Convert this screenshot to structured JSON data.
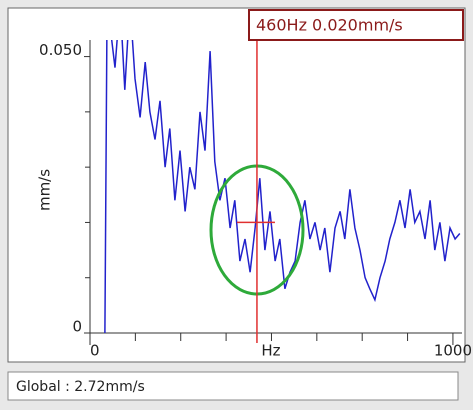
{
  "chart_data": {
    "type": "line",
    "xlabel": "Hz",
    "ylabel": "mm/s",
    "xlim": [
      0,
      1025
    ],
    "ylim": [
      0,
      0.053
    ],
    "xticks": [
      0,
      1000
    ],
    "xminorticks": [
      125,
      250,
      375,
      500,
      625,
      750,
      875
    ],
    "yticks": [
      0,
      {
        "value": 0.05,
        "label": "0.050"
      }
    ],
    "yminorticks": [
      0.01,
      0.02,
      0.03,
      0.04
    ],
    "x": [
      41,
      47,
      69,
      83,
      96,
      110,
      124,
      138,
      152,
      165,
      179,
      193,
      207,
      220,
      234,
      248,
      262,
      275,
      289,
      303,
      317,
      331,
      344,
      358,
      372,
      386,
      399,
      413,
      427,
      441,
      455,
      468,
      482,
      496,
      510,
      523,
      537,
      551,
      565,
      579,
      592,
      606,
      620,
      634,
      647,
      661,
      675,
      689,
      702,
      716,
      730,
      744,
      758,
      771,
      785,
      799,
      813,
      826,
      840,
      854,
      868,
      882,
      895,
      909,
      923,
      937,
      950,
      964,
      978,
      992,
      1006,
      1019
    ],
    "series": [
      {
        "color": "#2222cc",
        "values": [
          0,
          0.06,
          0.048,
          0.06,
          0.044,
          0.06,
          0.046,
          0.039,
          0.049,
          0.04,
          0.035,
          0.042,
          0.03,
          0.037,
          0.024,
          0.033,
          0.022,
          0.03,
          0.026,
          0.04,
          0.033,
          0.051,
          0.031,
          0.024,
          0.028,
          0.019,
          0.024,
          0.013,
          0.017,
          0.011,
          0.019,
          0.028,
          0.015,
          0.022,
          0.013,
          0.017,
          0.008,
          0.011,
          0.013,
          0.02,
          0.024,
          0.017,
          0.02,
          0.015,
          0.019,
          0.011,
          0.019,
          0.022,
          0.017,
          0.026,
          0.019,
          0.015,
          0.01,
          0.008,
          0.006,
          0.01,
          0.013,
          0.017,
          0.02,
          0.024,
          0.019,
          0.026,
          0.02,
          0.022,
          0.017,
          0.024,
          0.015,
          0.02,
          0.013,
          0.019,
          0.017,
          0.018
        ]
      }
    ],
    "cursor": {
      "x": 460,
      "y": 0.02,
      "label": "460Hz  0.020mm/s",
      "color": "#e03030"
    }
  },
  "status": {
    "global": "Global : 2.72mm/s"
  }
}
